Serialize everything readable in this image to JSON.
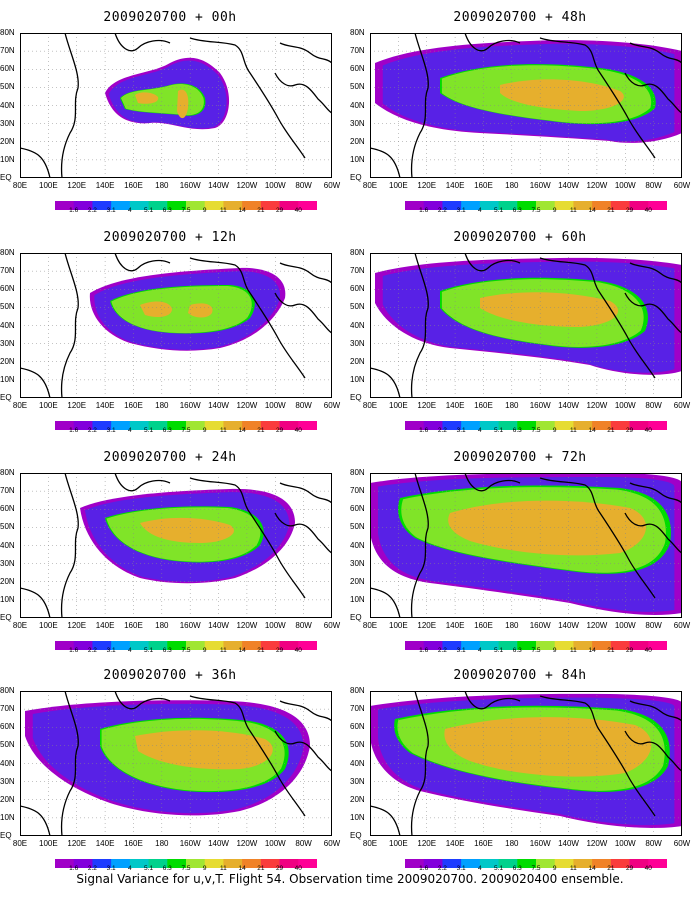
{
  "caption": "Signal Variance for u,v,T. Flight 54. Observation time 2009020700. 2009020400 ensemble.",
  "panels": [
    {
      "title": "2009020700 + 00h"
    },
    {
      "title": "2009020700 + 48h"
    },
    {
      "title": "2009020700 + 12h"
    },
    {
      "title": "2009020700 + 60h"
    },
    {
      "title": "2009020700 + 24h"
    },
    {
      "title": "2009020700 + 72h"
    },
    {
      "title": "2009020700 + 36h"
    },
    {
      "title": "2009020700 + 84h"
    }
  ],
  "lat_labels": [
    "80N",
    "70N",
    "60N",
    "50N",
    "40N",
    "30N",
    "20N",
    "10N",
    "EQ"
  ],
  "lon_labels": [
    "80E",
    "100E",
    "120E",
    "140E",
    "160E",
    "180",
    "160W",
    "140W",
    "120W",
    "100W",
    "80W",
    "60W"
  ],
  "colorbar": {
    "labels": [
      "1.6",
      "2.2",
      "3.1",
      "4",
      "5.1",
      "6.3",
      "7.5",
      "9",
      "11",
      "14",
      "21",
      "29",
      "40"
    ],
    "colors": [
      "#a000c8",
      "#8200dc",
      "#1e3cff",
      "#00a0ff",
      "#00c8c8",
      "#00d28c",
      "#00dc00",
      "#a0e632",
      "#e6dc32",
      "#e6af2d",
      "#f08228",
      "#fa3c3c",
      "#f00082"
    ]
  }
}
